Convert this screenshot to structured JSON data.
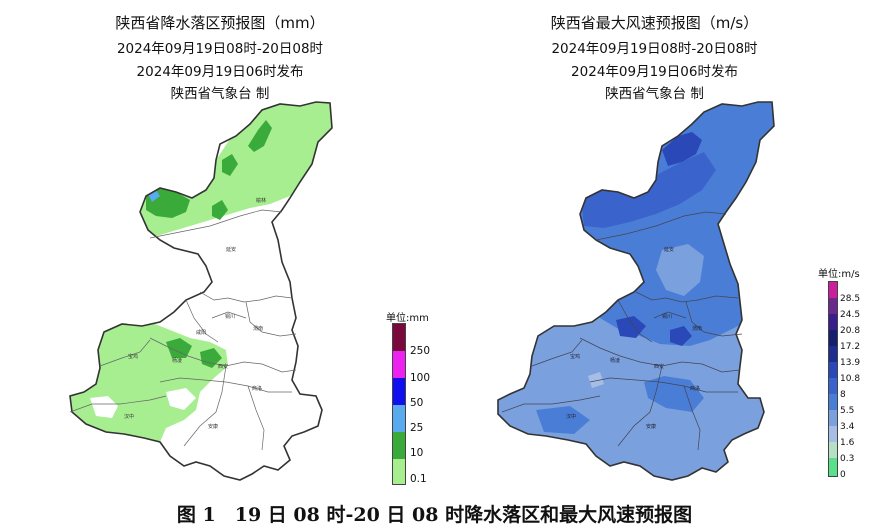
{
  "left": {
    "title": "陕西省降水落区预报图（mm）",
    "period": "2024年09月19日08时-20日08时",
    "issued": "2024年09月19日06时发布",
    "issuer": "陕西省气象台 制",
    "legend": {
      "unit": "单位:mm",
      "bins": [
        {
          "label": "250",
          "color": "#7a0a3c"
        },
        {
          "label": "100",
          "color": "#ee22ee"
        },
        {
          "label": "50",
          "color": "#1010ee"
        },
        {
          "label": "25",
          "color": "#5aaaf0"
        },
        {
          "label": "10",
          "color": "#3aaa3a"
        },
        {
          "label": "0.1",
          "color": "#a6ee90"
        }
      ]
    },
    "cities": [
      "榆林",
      "延安",
      "铜川",
      "渭南",
      "咸阳",
      "宝鸡",
      "杨凌",
      "西安",
      "商洛",
      "汉中",
      "安康"
    ]
  },
  "right": {
    "title": "陕西省最大风速预报图（m/s）",
    "period": "2024年09月19日08时-20日08时",
    "issued": "2024年09月19日06时发布",
    "issuer": "陕西省气象台 制",
    "legend": {
      "unit": "单位:m/s",
      "ticks": [
        "28.5",
        "24.5",
        "20.8",
        "17.2",
        "13.9",
        "10.8",
        "8",
        "5.5",
        "3.4",
        "1.6",
        "0.3",
        "0"
      ],
      "colors": [
        "#cc1e9c",
        "#6a2a8c",
        "#3a1e8a",
        "#161e6e",
        "#1e2e8e",
        "#2a48b8",
        "#3a64cc",
        "#4a7ed6",
        "#7aa0de",
        "#a6bee6",
        "#b6e0c6",
        "#5ae08a"
      ]
    },
    "cities": [
      "延安",
      "铜川",
      "渭南",
      "宝鸡",
      "杨凌",
      "西安",
      "商洛",
      "汉中",
      "安康"
    ]
  },
  "caption": "图 1　19 日 08 时-20 日 08 时降水落区和最大风速预报图"
}
